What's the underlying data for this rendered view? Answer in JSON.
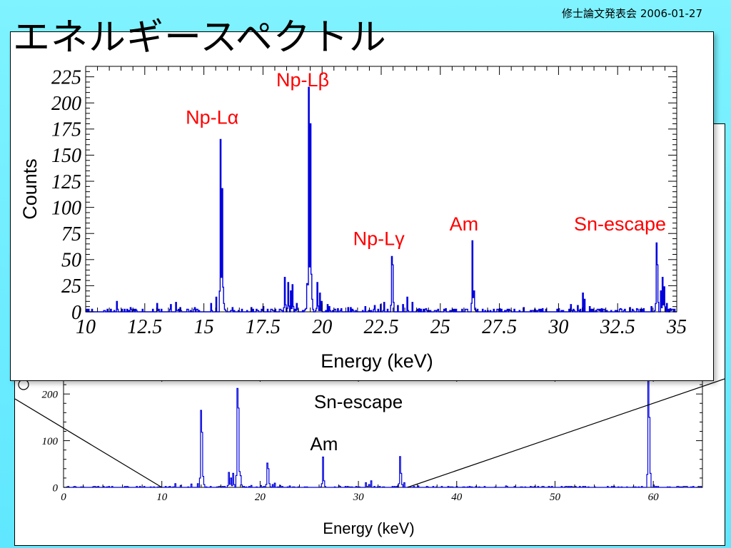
{
  "slide": {
    "title": "エネルギースペクトル",
    "meta": "修士論文発表会 2006-01-27"
  },
  "chart_data": [
    {
      "type": "line",
      "name": "zoomed",
      "xlabel": "Energy (keV)",
      "ylabel": "Counts",
      "xlim": [
        10,
        35
      ],
      "ylim": [
        0,
        235
      ],
      "x_ticks": [
        "10",
        "12.5",
        "15",
        "17.5",
        "20",
        "22.5",
        "25",
        "27.5",
        "30",
        "32.5",
        "35"
      ],
      "y_ticks": [
        "0",
        "25",
        "50",
        "75",
        "100",
        "125",
        "150",
        "175",
        "200",
        "225"
      ],
      "color": "#0000dd",
      "peaks": [
        {
          "x": 11.3,
          "y": 10
        },
        {
          "x": 11.9,
          "y": 4
        },
        {
          "x": 13.0,
          "y": 8
        },
        {
          "x": 13.6,
          "y": 7
        },
        {
          "x": 13.8,
          "y": 9
        },
        {
          "x": 14.0,
          "y": 4
        },
        {
          "x": 14.6,
          "y": 4
        },
        {
          "x": 15.3,
          "y": 8
        },
        {
          "x": 15.5,
          "y": 14
        },
        {
          "x": 15.7,
          "y": 165
        },
        {
          "x": 15.76,
          "y": 118
        },
        {
          "x": 15.85,
          "y": 8
        },
        {
          "x": 16.2,
          "y": 4
        },
        {
          "x": 17.0,
          "y": 3
        },
        {
          "x": 17.5,
          "y": 5
        },
        {
          "x": 17.0,
          "y": 4
        },
        {
          "x": 18.4,
          "y": 33
        },
        {
          "x": 18.55,
          "y": 28
        },
        {
          "x": 18.65,
          "y": 20
        },
        {
          "x": 18.75,
          "y": 26
        },
        {
          "x": 18.9,
          "y": 8
        },
        {
          "x": 19.35,
          "y": 27
        },
        {
          "x": 19.42,
          "y": 215
        },
        {
          "x": 19.48,
          "y": 180
        },
        {
          "x": 19.56,
          "y": 12
        },
        {
          "x": 19.8,
          "y": 28
        },
        {
          "x": 19.9,
          "y": 18
        },
        {
          "x": 20.3,
          "y": 5
        },
        {
          "x": 20.8,
          "y": 3
        },
        {
          "x": 21.2,
          "y": 4
        },
        {
          "x": 21.8,
          "y": 5
        },
        {
          "x": 22.2,
          "y": 4
        },
        {
          "x": 20.65,
          "y": 3
        },
        {
          "x": 21.1,
          "y": 4
        },
        {
          "x": 19.95,
          "y": 10
        },
        {
          "x": 20.2,
          "y": 7
        },
        {
          "x": 22.2,
          "y": 6
        },
        {
          "x": 22.45,
          "y": 7
        },
        {
          "x": 22.62,
          "y": 9
        },
        {
          "x": 22.92,
          "y": 53
        },
        {
          "x": 22.98,
          "y": 45
        },
        {
          "x": 23.2,
          "y": 6
        },
        {
          "x": 23.4,
          "y": 7
        },
        {
          "x": 23.6,
          "y": 14
        },
        {
          "x": 23.8,
          "y": 9
        },
        {
          "x": 24.1,
          "y": 3
        },
        {
          "x": 24.4,
          "y": 3
        },
        {
          "x": 25.2,
          "y": 3
        },
        {
          "x": 26.34,
          "y": 68
        },
        {
          "x": 26.4,
          "y": 20
        },
        {
          "x": 27.5,
          "y": 3
        },
        {
          "x": 28.5,
          "y": 4
        },
        {
          "x": 29.3,
          "y": 3
        },
        {
          "x": 30.0,
          "y": 3
        },
        {
          "x": 30.5,
          "y": 7
        },
        {
          "x": 30.8,
          "y": 6
        },
        {
          "x": 31.0,
          "y": 18
        },
        {
          "x": 31.08,
          "y": 12
        },
        {
          "x": 31.3,
          "y": 5
        },
        {
          "x": 31.8,
          "y": 3
        },
        {
          "x": 32.6,
          "y": 3
        },
        {
          "x": 33.0,
          "y": 4
        },
        {
          "x": 33.3,
          "y": 3
        },
        {
          "x": 33.6,
          "y": 3
        },
        {
          "x": 33.9,
          "y": 5
        },
        {
          "x": 34.12,
          "y": 66
        },
        {
          "x": 34.18,
          "y": 45
        },
        {
          "x": 34.3,
          "y": 20
        },
        {
          "x": 34.38,
          "y": 33
        },
        {
          "x": 34.45,
          "y": 24
        },
        {
          "x": 34.55,
          "y": 8
        },
        {
          "x": 34.7,
          "y": 3
        },
        {
          "x": 34.9,
          "y": 2
        }
      ],
      "annotations": [
        {
          "text": "Np-Lα",
          "x": 15.35,
          "y": 180
        },
        {
          "text": "Np-Lβ",
          "x": 19.18,
          "y": 216
        },
        {
          "text": "Np-Lγ",
          "x": 22.4,
          "y": 64
        },
        {
          "text": "Am",
          "x": 26.0,
          "y": 78
        },
        {
          "text": "Sn-escape",
          "x": 32.6,
          "y": 78
        }
      ]
    },
    {
      "type": "line",
      "name": "full",
      "xlabel": "Energy (keV)",
      "xlim": [
        0,
        65
      ],
      "ylim": [
        0,
        240
      ],
      "x_ticks": [
        "0",
        "10",
        "20",
        "30",
        "40",
        "50",
        "60"
      ],
      "y_ticks": [
        "0",
        "100",
        "200"
      ],
      "color": "#0000dd",
      "peaks": [
        {
          "x": 11.3,
          "y": 8
        },
        {
          "x": 11.9,
          "y": 4
        },
        {
          "x": 13.0,
          "y": 7
        },
        {
          "x": 13.6,
          "y": 8
        },
        {
          "x": 13.95,
          "y": 165
        },
        {
          "x": 14.05,
          "y": 118
        },
        {
          "x": 14.3,
          "y": 6
        },
        {
          "x": 16.8,
          "y": 32
        },
        {
          "x": 17.0,
          "y": 20
        },
        {
          "x": 17.25,
          "y": 30
        },
        {
          "x": 17.65,
          "y": 212
        },
        {
          "x": 17.72,
          "y": 170
        },
        {
          "x": 17.9,
          "y": 6
        },
        {
          "x": 18.0,
          "y": 25
        },
        {
          "x": 19.0,
          "y": 4
        },
        {
          "x": 20.0,
          "y": 4
        },
        {
          "x": 20.7,
          "y": 52
        },
        {
          "x": 20.8,
          "y": 40
        },
        {
          "x": 21.2,
          "y": 6
        },
        {
          "x": 21.5,
          "y": 9
        },
        {
          "x": 22.0,
          "y": 4
        },
        {
          "x": 23.0,
          "y": 3
        },
        {
          "x": 26.35,
          "y": 65
        },
        {
          "x": 26.45,
          "y": 14
        },
        {
          "x": 28.0,
          "y": 3
        },
        {
          "x": 30.7,
          "y": 10
        },
        {
          "x": 31.0,
          "y": 6
        },
        {
          "x": 31.2,
          "y": 14
        },
        {
          "x": 34.15,
          "y": 66
        },
        {
          "x": 34.35,
          "y": 30
        },
        {
          "x": 34.6,
          "y": 10
        },
        {
          "x": 36.0,
          "y": 3
        },
        {
          "x": 40.0,
          "y": 2
        },
        {
          "x": 45.0,
          "y": 3
        },
        {
          "x": 52.0,
          "y": 2
        },
        {
          "x": 59.5,
          "y": 230
        },
        {
          "x": 59.6,
          "y": 150
        },
        {
          "x": 60.0,
          "y": 5
        }
      ],
      "annotations": [
        {
          "text": "Sn-escape",
          "x": 30.0,
          "y": 185
        },
        {
          "text": "Am",
          "x": 26.5,
          "y": 95
        }
      ]
    }
  ]
}
